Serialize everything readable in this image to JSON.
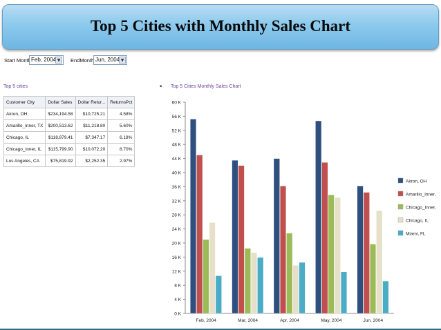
{
  "header": {
    "title": "Top 5 Cities with Monthly Sales Chart"
  },
  "filters": {
    "start_label": "Start Month:",
    "start_value": "Feb, 2004",
    "end_label": "EndMonth:",
    "end_value": "Jun, 2004"
  },
  "table": {
    "title": "Top 5 cities",
    "columns": [
      "Customer City",
      "Dollar Sales",
      "Dollar Retur...",
      "ReturnsPct"
    ],
    "rows": [
      [
        "Akron, OH",
        "$234,194.58",
        "$10,725.21",
        "4.58%"
      ],
      [
        "Amarillo_Inner, TX",
        "$200,513.62",
        "$11,218.80",
        "5.60%"
      ],
      [
        "Chicago, IL",
        "$118,879.41",
        "$7,347.17",
        "6.18%"
      ],
      [
        "Chicago_Inner, IL",
        "$115,799.90",
        "$10,072.20",
        "8.70%"
      ],
      [
        "Los Angeles, CA",
        "$75,819.92",
        "$2,252.35",
        "2.97%"
      ]
    ]
  },
  "chart_data": {
    "type": "bar",
    "title": "Top 5 Cities Monthly Sales Chart",
    "categories": [
      "Feb, 2004",
      "Mar, 2004",
      "Apr, 2004",
      "May, 2004",
      "Jun, 2004"
    ],
    "series": [
      {
        "name": "Akron, OH",
        "color": "#2f4f7f",
        "values": [
          55200,
          43500,
          44000,
          54700,
          36200
        ]
      },
      {
        "name": "Amarillo_Inner, TX",
        "color": "#c0504d",
        "values": [
          45000,
          42000,
          36200,
          42900,
          34400
        ]
      },
      {
        "name": "Chicago_Inner, IL",
        "color": "#9bbb59",
        "values": [
          21000,
          18500,
          22800,
          33700,
          19700
        ]
      },
      {
        "name": "Chicago, IL",
        "color": "#e6e0c8",
        "values": [
          25800,
          17300,
          13700,
          32900,
          29200
        ]
      },
      {
        "name": "Miami, FL",
        "color": "#4bacc6",
        "values": [
          10700,
          15900,
          14500,
          11800,
          9200
        ]
      }
    ],
    "yticks": [
      "0 K",
      "4 K",
      "8 K",
      "12 K",
      "16 K",
      "20 K",
      "24 K",
      "28 K",
      "32 K",
      "36 K",
      "40 K",
      "44 K",
      "48 K",
      "52 K",
      "56 K",
      "60 K"
    ],
    "ylim": [
      0,
      60000
    ],
    "legend_position": "right",
    "grid": false
  }
}
